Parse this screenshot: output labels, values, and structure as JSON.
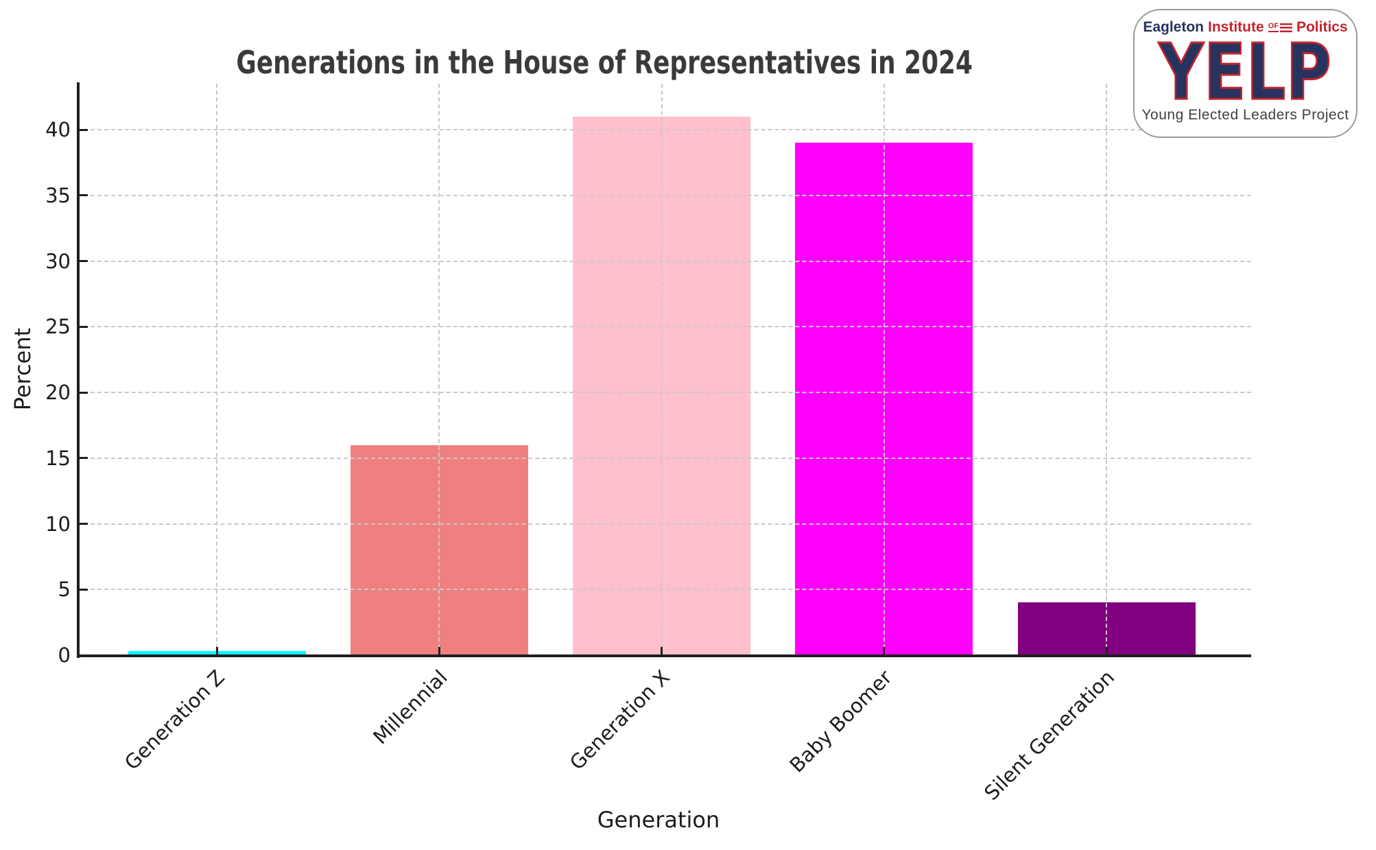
{
  "chart_data": {
    "type": "bar",
    "title": "Generations in the House of Representatives in 2024",
    "xlabel": "Generation",
    "ylabel": "Percent",
    "categories": [
      "Generation Z",
      "Millennial",
      "Generation X",
      "Baby Boomer",
      "Silent Generation"
    ],
    "values": [
      0.3,
      16,
      41,
      39,
      4
    ],
    "bar_colors": [
      "#00ffff",
      "#f08080",
      "#ffc0cb",
      "#ff00ff",
      "#800080"
    ],
    "yticks": [
      0,
      5,
      10,
      15,
      20,
      25,
      30,
      35,
      40
    ],
    "ylim": [
      0,
      43.5
    ],
    "grid": {
      "style": "dashed",
      "color": "#c9c9c9",
      "on_top": true
    },
    "axis_color": "#1f1f1f",
    "background": "#ffffff",
    "legend": "none"
  },
  "logo": {
    "line1_blue": "Eagleton",
    "line1_red": "Institute",
    "line1_of": "OF",
    "line1_red2": "Politics",
    "acronym": "YELP",
    "tagline": "Young Elected Leaders Project",
    "navy": "#27335f",
    "red": "#c4242c"
  }
}
